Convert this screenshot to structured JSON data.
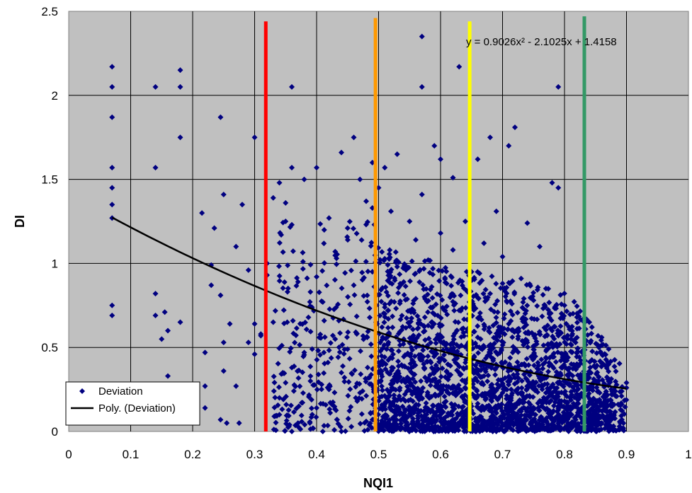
{
  "chart_data": {
    "type": "scatter",
    "xlabel": "NQI1",
    "ylabel": "DI",
    "xlim": [
      0,
      1
    ],
    "ylim": [
      0,
      2.5
    ],
    "x_ticks": [
      "0",
      "0.1",
      "0.2",
      "0.3",
      "0.4",
      "0.5",
      "0.6",
      "0.7",
      "0.8",
      "0.9",
      "1"
    ],
    "y_ticks": [
      "0",
      "0.5",
      "1",
      "1.5",
      "2",
      "2.5"
    ],
    "grid": true,
    "plot_background": "#c0c0c0",
    "legend_position": "bottom-left",
    "series": [
      {
        "name": "Deviation",
        "marker": "diamond",
        "color": "#000080",
        "approximate_point_count": 2800,
        "points": [
          [
            0.07,
            2.17
          ],
          [
            0.07,
            2.05
          ],
          [
            0.07,
            1.87
          ],
          [
            0.07,
            1.57
          ],
          [
            0.07,
            1.45
          ],
          [
            0.07,
            1.35
          ],
          [
            0.07,
            1.27
          ],
          [
            0.07,
            0.75
          ],
          [
            0.07,
            0.69
          ],
          [
            0.14,
            2.05
          ],
          [
            0.14,
            1.57
          ],
          [
            0.14,
            0.82
          ],
          [
            0.14,
            0.69
          ],
          [
            0.15,
            0.55
          ],
          [
            0.155,
            0.71
          ],
          [
            0.16,
            0.6
          ],
          [
            0.16,
            0.33
          ],
          [
            0.18,
            2.15
          ],
          [
            0.18,
            2.05
          ],
          [
            0.18,
            1.75
          ],
          [
            0.18,
            0.65
          ],
          [
            0.18,
            0.22
          ],
          [
            0.215,
            1.3
          ],
          [
            0.22,
            0.47
          ],
          [
            0.22,
            0.27
          ],
          [
            0.22,
            0.14
          ],
          [
            0.23,
            0.99
          ],
          [
            0.23,
            0.87
          ],
          [
            0.235,
            1.21
          ],
          [
            0.245,
            1.87
          ],
          [
            0.25,
            1.41
          ],
          [
            0.245,
            0.81
          ],
          [
            0.25,
            0.53
          ],
          [
            0.25,
            0.36
          ],
          [
            0.245,
            0.07
          ],
          [
            0.255,
            0.05
          ],
          [
            0.26,
            0.64
          ],
          [
            0.27,
            1.1
          ],
          [
            0.27,
            0.27
          ],
          [
            0.275,
            0.05
          ],
          [
            0.28,
            1.35
          ],
          [
            0.29,
            0.96
          ],
          [
            0.29,
            0.53
          ],
          [
            0.3,
            1.75
          ],
          [
            0.3,
            0.64
          ],
          [
            0.3,
            0.46
          ],
          [
            0.31,
            0.58
          ],
          [
            0.31,
            0.57
          ],
          [
            0.32,
            1.0
          ],
          [
            0.32,
            0.93
          ],
          [
            0.33,
            1.39
          ],
          [
            0.33,
            0.65
          ],
          [
            0.34,
            1.48
          ],
          [
            0.34,
            0.2
          ],
          [
            0.34,
            0.1
          ],
          [
            0.35,
            1.25
          ],
          [
            0.35,
            1.36
          ],
          [
            0.35,
            0.29
          ],
          [
            0.36,
            2.05
          ],
          [
            0.36,
            1.57
          ],
          [
            0.36,
            1.23
          ],
          [
            0.36,
            0.38
          ],
          [
            0.36,
            0.0
          ],
          [
            0.37,
            0.89
          ],
          [
            0.37,
            0.05
          ],
          [
            0.38,
            1.5
          ],
          [
            0.38,
            0.47
          ],
          [
            0.39,
            0.83
          ],
          [
            0.39,
            0.3
          ],
          [
            0.4,
            1.57
          ],
          [
            0.4,
            0.92
          ],
          [
            0.4,
            0.14
          ],
          [
            0.41,
            0.77
          ],
          [
            0.41,
            0.0
          ],
          [
            0.42,
            1.27
          ],
          [
            0.42,
            0.25
          ],
          [
            0.43,
            1.07
          ],
          [
            0.43,
            0.55
          ],
          [
            0.44,
            1.66
          ],
          [
            0.44,
            0.35
          ],
          [
            0.44,
            0.0
          ],
          [
            0.45,
            1.21
          ],
          [
            0.45,
            0.49
          ],
          [
            0.46,
            1.75
          ],
          [
            0.46,
            0.87
          ],
          [
            0.47,
            1.5
          ],
          [
            0.47,
            0.23
          ],
          [
            0.48,
            1.37
          ],
          [
            0.48,
            0.06
          ],
          [
            0.49,
            1.6
          ],
          [
            0.49,
            1.33
          ],
          [
            0.49,
            0.95
          ],
          [
            0.5,
            1.45
          ],
          [
            0.5,
            0.41
          ],
          [
            0.51,
            1.57
          ],
          [
            0.51,
            0.7
          ],
          [
            0.52,
            1.31
          ],
          [
            0.52,
            0.13
          ],
          [
            0.53,
            1.65
          ],
          [
            0.53,
            0.98
          ],
          [
            0.54,
            0.52
          ],
          [
            0.55,
            1.25
          ],
          [
            0.55,
            0.31
          ],
          [
            0.56,
            1.14
          ],
          [
            0.56,
            0.79
          ],
          [
            0.57,
            2.35
          ],
          [
            0.57,
            2.05
          ],
          [
            0.57,
            1.41
          ],
          [
            0.57,
            0.2
          ],
          [
            0.58,
            1.02
          ],
          [
            0.58,
            0.63
          ],
          [
            0.59,
            1.7
          ],
          [
            0.59,
            0.37
          ],
          [
            0.6,
            1.62
          ],
          [
            0.6,
            1.18
          ],
          [
            0.6,
            0.08
          ],
          [
            0.61,
            0.88
          ],
          [
            0.61,
            0.49
          ],
          [
            0.62,
            1.51
          ],
          [
            0.62,
            1.08
          ],
          [
            0.62,
            0.27
          ],
          [
            0.63,
            2.17
          ],
          [
            0.63,
            0.72
          ],
          [
            0.64,
            1.25
          ],
          [
            0.64,
            0.41
          ],
          [
            0.65,
            0.95
          ],
          [
            0.65,
            0.15
          ],
          [
            0.66,
            1.62
          ],
          [
            0.66,
            0.56
          ],
          [
            0.67,
            1.12
          ],
          [
            0.67,
            0.33
          ],
          [
            0.68,
            1.75
          ],
          [
            0.68,
            0.82
          ],
          [
            0.68,
            0.05
          ],
          [
            0.69,
            1.31
          ],
          [
            0.69,
            0.47
          ],
          [
            0.7,
            1.04
          ],
          [
            0.7,
            0.23
          ],
          [
            0.71,
            1.7
          ],
          [
            0.71,
            0.64
          ],
          [
            0.72,
            1.81
          ],
          [
            0.72,
            0.38
          ],
          [
            0.73,
            0.91
          ],
          [
            0.73,
            0.12
          ],
          [
            0.74,
            1.24
          ],
          [
            0.74,
            0.53
          ],
          [
            0.75,
            0.78
          ],
          [
            0.75,
            0.29
          ],
          [
            0.76,
            1.1
          ],
          [
            0.76,
            0.07
          ],
          [
            0.77,
            0.85
          ],
          [
            0.77,
            0.44
          ],
          [
            0.78,
            1.48
          ],
          [
            0.78,
            0.6
          ],
          [
            0.79,
            2.05
          ],
          [
            0.79,
            1.45
          ],
          [
            0.79,
            0.34
          ],
          [
            0.8,
            0.75
          ],
          [
            0.8,
            0.18
          ],
          [
            0.81,
            0.52
          ],
          [
            0.81,
            0.03
          ],
          [
            0.82,
            0.68
          ],
          [
            0.82,
            0.27
          ],
          [
            0.83,
            0.47
          ],
          [
            0.84,
            0.65
          ],
          [
            0.84,
            0.12
          ],
          [
            0.85,
            0.38
          ],
          [
            0.86,
            0.56
          ],
          [
            0.86,
            0.05
          ],
          [
            0.87,
            0.31
          ],
          [
            0.88,
            0.16
          ],
          [
            0.9,
            0.29
          ],
          [
            0.9,
            0.26
          ]
        ]
      }
    ],
    "trendline": {
      "name": "Poly. (Deviation)",
      "type": "polynomial",
      "order": 2,
      "coefficients": [
        0.9026,
        -2.1025,
        1.4158
      ],
      "x_range": [
        0.07,
        0.9
      ],
      "color": "#000000",
      "equation_label": "y = 0.9026x² - 2.1025x + 1.4158"
    },
    "vertical_lines": [
      {
        "x": 0.318,
        "y_top": 2.44,
        "color": "#ff0000"
      },
      {
        "x": 0.495,
        "y_top": 2.46,
        "color": "#ff9900"
      },
      {
        "x": 0.647,
        "y_top": 2.44,
        "color": "#ffff00"
      },
      {
        "x": 0.832,
        "y_top": 2.47,
        "color": "#339966"
      }
    ],
    "legend": [
      {
        "label": "Deviation",
        "symbol": "diamond",
        "color": "#000080"
      },
      {
        "label": "Poly. (Deviation)",
        "symbol": "line",
        "color": "#000000"
      }
    ]
  }
}
